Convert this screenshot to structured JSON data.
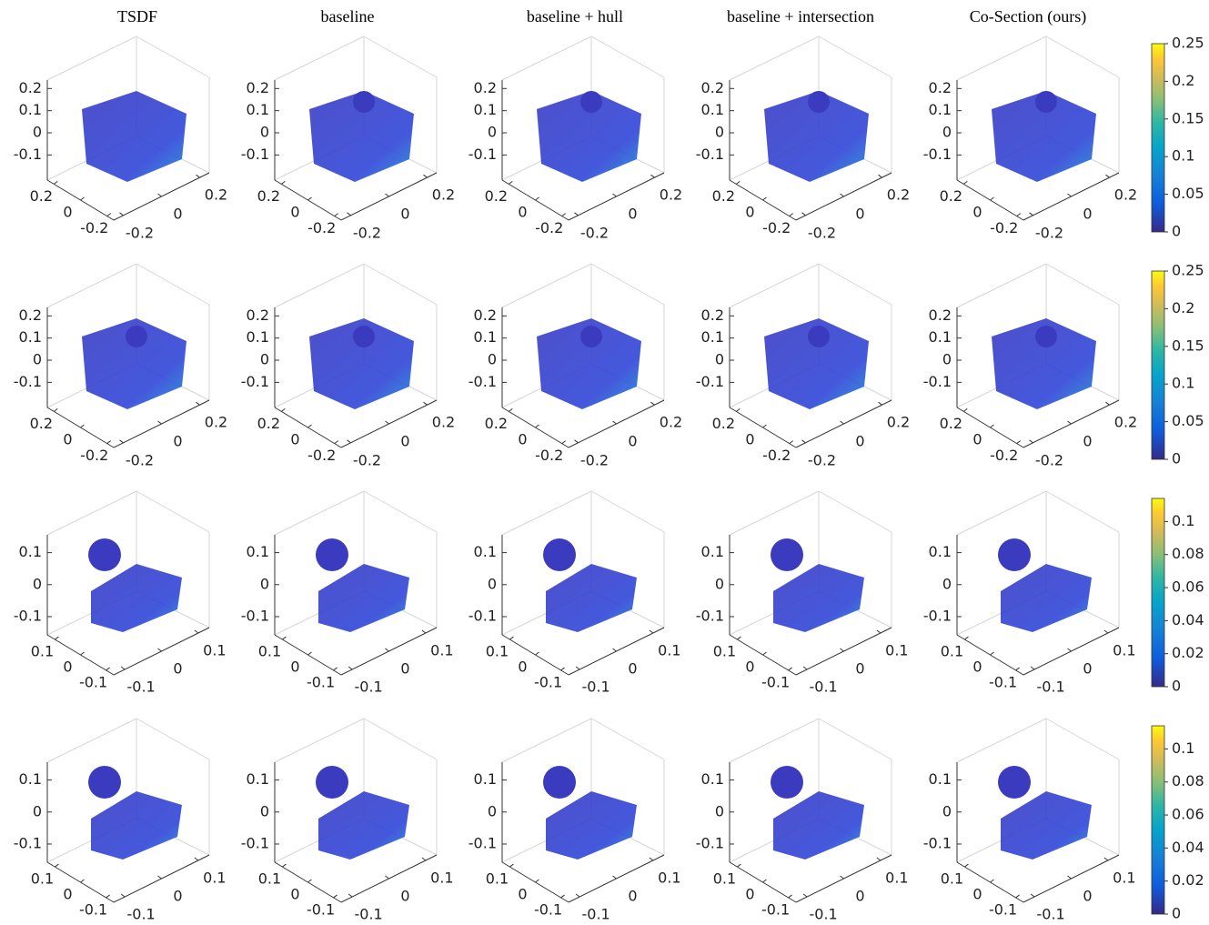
{
  "columns": [
    "TSDF",
    "baseline",
    "baseline + hull",
    "baseline + intersection",
    "Co-Section (ours)"
  ],
  "rows": [
    {
      "zlim": [
        -0.16,
        0.23
      ],
      "zticks": [
        0.2,
        0.1,
        0,
        -0.1
      ],
      "xlim": [
        -0.25,
        0.25
      ],
      "xticks": [
        0.2,
        0,
        -0.2
      ],
      "ylim": [
        -0.25,
        0.25
      ],
      "yticks": [
        -0.2,
        0,
        0.2
      ],
      "colorbar": {
        "lim": [
          0,
          0.25
        ],
        "ticks": [
          0,
          0.05,
          0.1,
          0.15,
          0.2,
          0.25
        ]
      }
    },
    {
      "zlim": [
        -0.16,
        0.23
      ],
      "zticks": [
        0.2,
        0.1,
        0,
        -0.1
      ],
      "xlim": [
        -0.25,
        0.25
      ],
      "xticks": [
        0.2,
        0,
        -0.2
      ],
      "ylim": [
        -0.25,
        0.25
      ],
      "yticks": [
        -0.2,
        0,
        0.2
      ],
      "colorbar": {
        "lim": [
          0,
          0.25
        ],
        "ticks": [
          0,
          0.05,
          0.1,
          0.15,
          0.2,
          0.25
        ]
      }
    },
    {
      "zlim": [
        -0.12,
        0.15
      ],
      "zticks": [
        0.1,
        0,
        -0.1
      ],
      "xlim": [
        -0.13,
        0.13
      ],
      "xticks": [
        0.1,
        0,
        -0.1
      ],
      "ylim": [
        -0.13,
        0.13
      ],
      "yticks": [
        -0.1,
        0,
        0.1
      ],
      "colorbar": {
        "lim": [
          0,
          0.114
        ],
        "ticks": [
          0,
          0.02,
          0.04,
          0.06,
          0.08,
          0.1
        ]
      }
    },
    {
      "zlim": [
        -0.12,
        0.15
      ],
      "zticks": [
        0.1,
        0,
        -0.1
      ],
      "xlim": [
        -0.13,
        0.13
      ],
      "xticks": [
        0.1,
        0,
        -0.1
      ],
      "ylim": [
        -0.13,
        0.13
      ],
      "yticks": [
        -0.1,
        0,
        0.1
      ],
      "colorbar": {
        "lim": [
          0,
          0.114
        ],
        "ticks": [
          0,
          0.02,
          0.04,
          0.06,
          0.08,
          0.1
        ]
      }
    }
  ]
}
